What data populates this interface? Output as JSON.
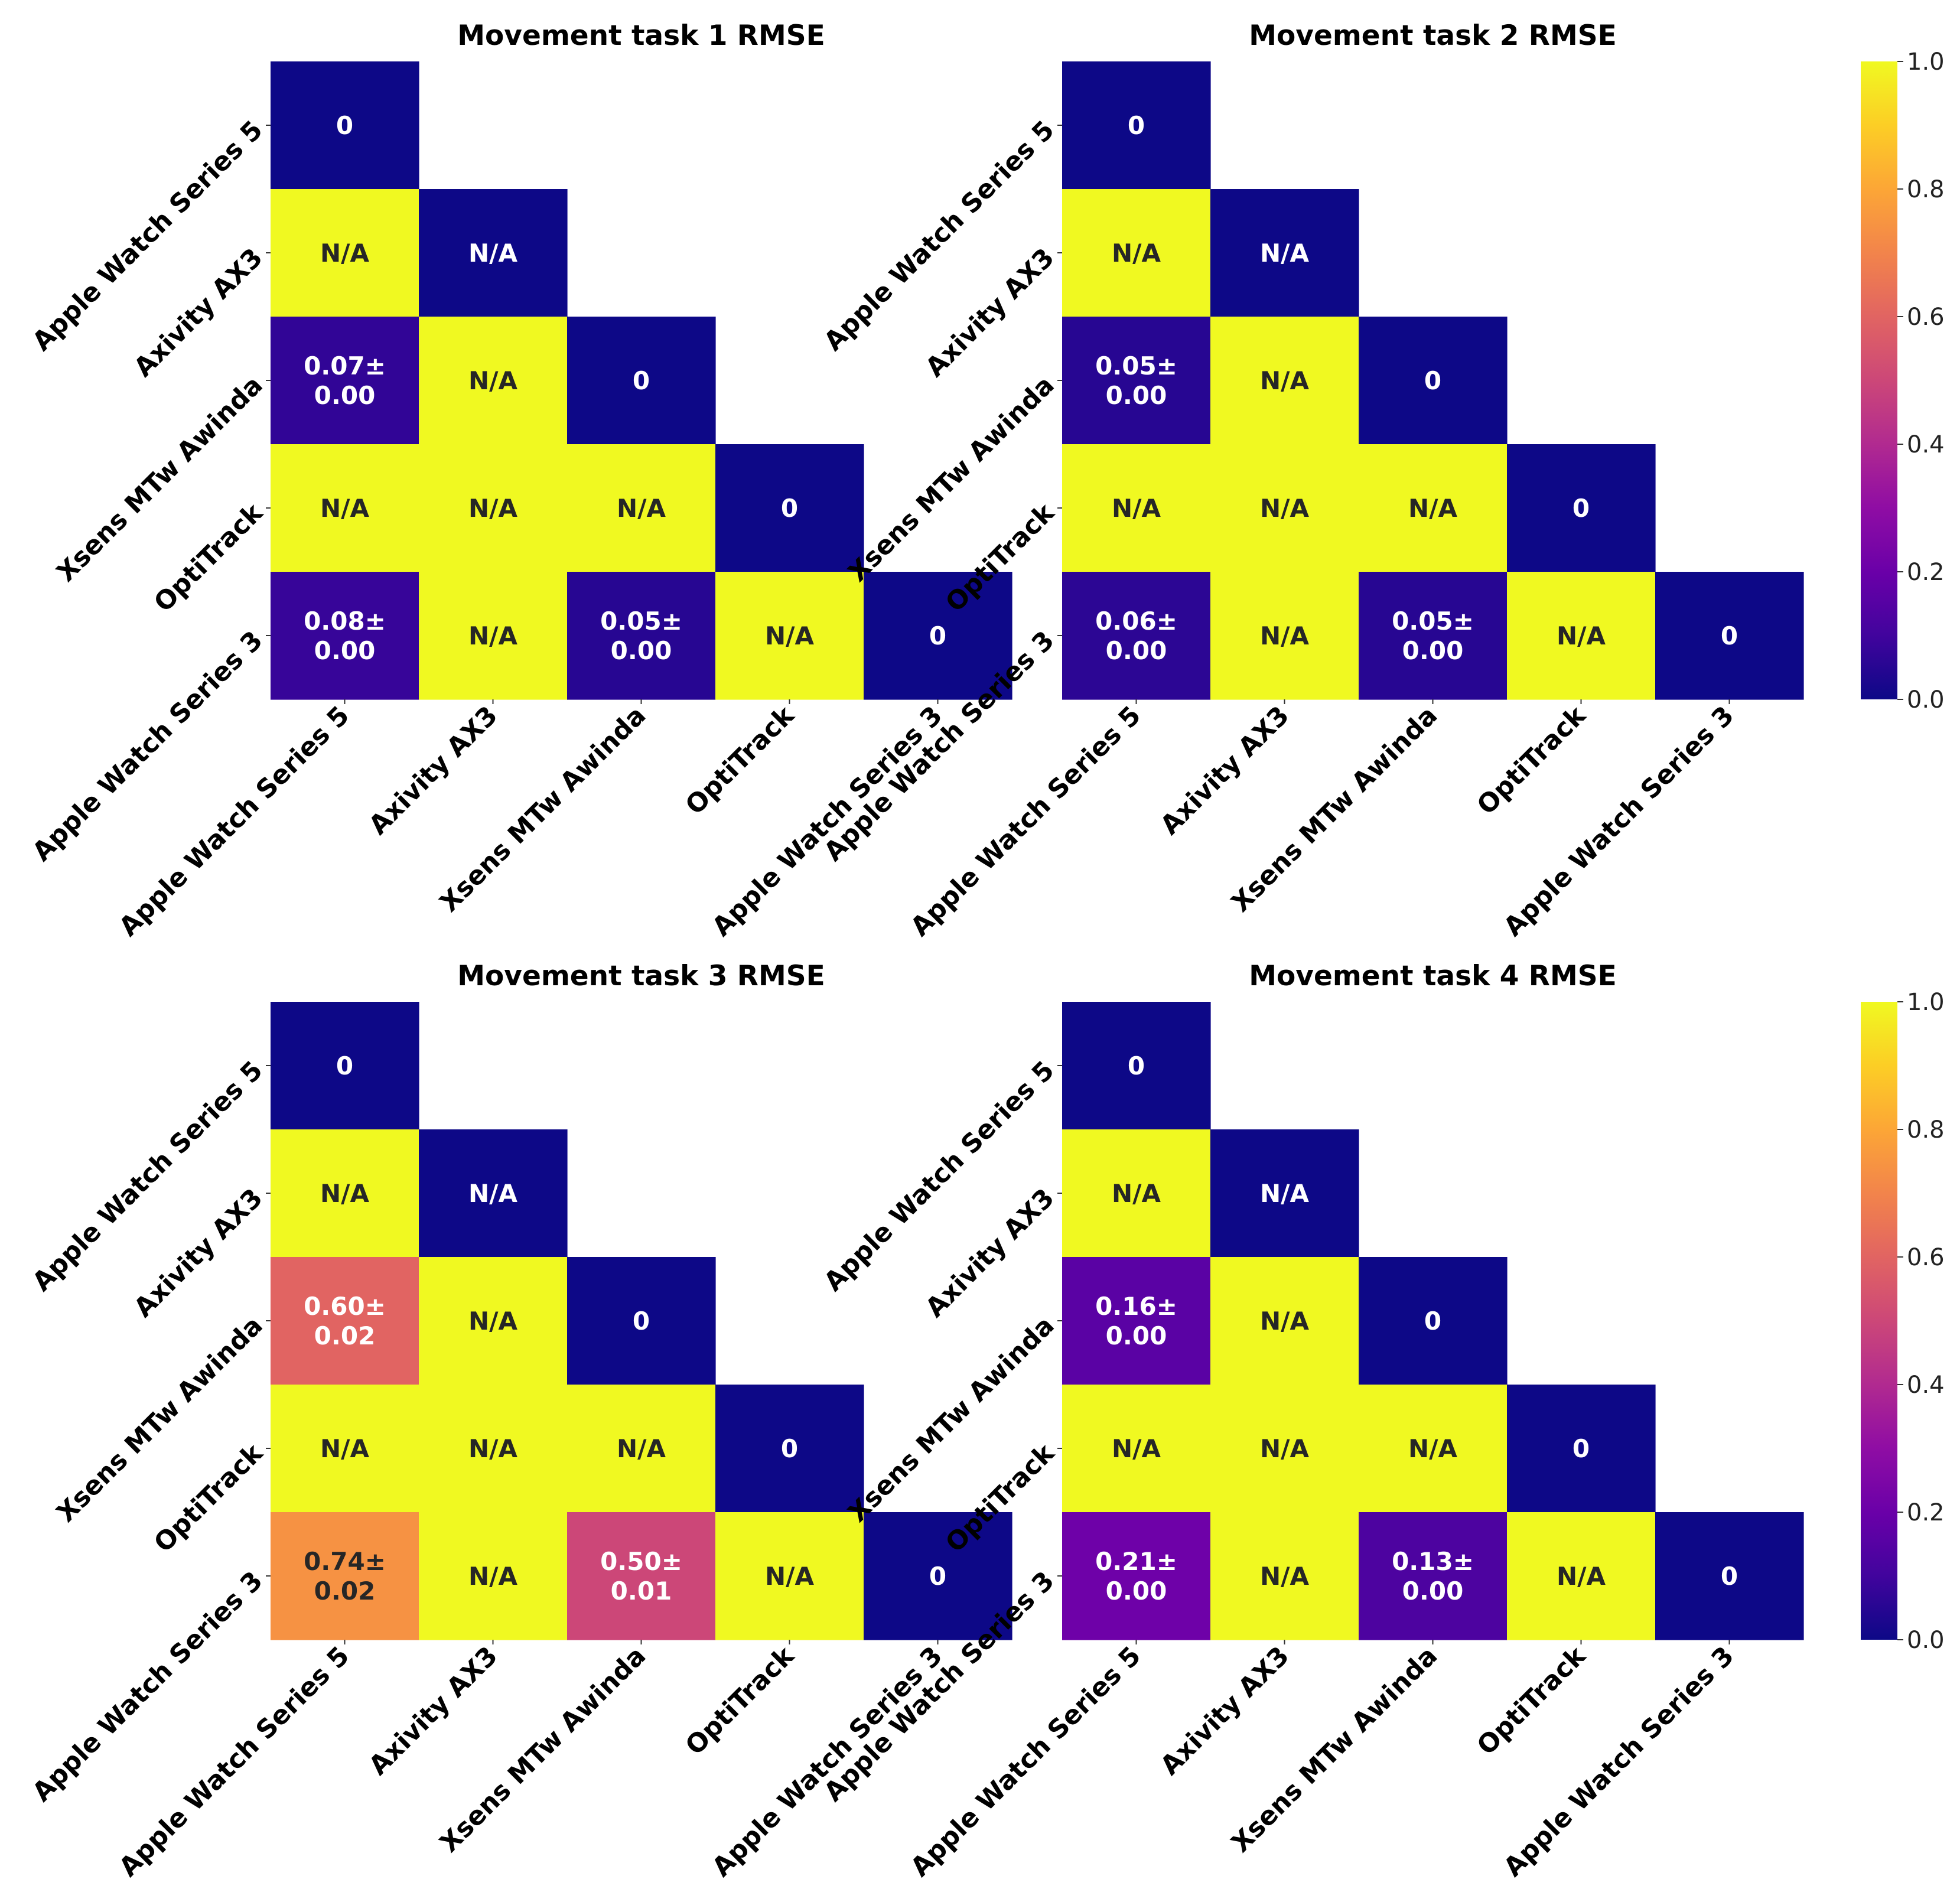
{
  "chart_data": [
    {
      "type": "heatmap",
      "title": "Movement task 1 RMSE",
      "labels": [
        "Apple Watch Series 5",
        "Axivity AX3",
        "Xsens MTw Awinda",
        "OptiTrack",
        "Apple Watch Series 3"
      ],
      "values": [
        [
          0
        ],
        [
          1,
          0
        ],
        [
          0.07,
          1,
          0
        ],
        [
          1,
          1,
          1,
          0
        ],
        [
          0.08,
          1,
          0.05,
          1,
          0
        ]
      ],
      "annotations": [
        [
          "0"
        ],
        [
          "N/A",
          "N/A"
        ],
        [
          "0.07±\n0.00",
          "N/A",
          "0"
        ],
        [
          "N/A",
          "N/A",
          "N/A",
          "0"
        ],
        [
          "0.08±\n0.00",
          "N/A",
          "0.05±\n0.00",
          "N/A",
          "0"
        ]
      ]
    },
    {
      "type": "heatmap",
      "title": "Movement task 2 RMSE",
      "labels": [
        "Apple Watch Series 5",
        "Axivity AX3",
        "Xsens MTw Awinda",
        "OptiTrack",
        "Apple Watch Series 3"
      ],
      "values": [
        [
          0
        ],
        [
          1,
          0
        ],
        [
          0.05,
          1,
          0
        ],
        [
          1,
          1,
          1,
          0
        ],
        [
          0.06,
          1,
          0.05,
          1,
          0
        ]
      ],
      "annotations": [
        [
          "0"
        ],
        [
          "N/A",
          "N/A"
        ],
        [
          "0.05±\n0.00",
          "N/A",
          "0"
        ],
        [
          "N/A",
          "N/A",
          "N/A",
          "0"
        ],
        [
          "0.06±\n0.00",
          "N/A",
          "0.05±\n0.00",
          "N/A",
          "0"
        ]
      ]
    },
    {
      "type": "heatmap",
      "title": "Movement task 3 RMSE",
      "labels": [
        "Apple Watch Series 5",
        "Axivity AX3",
        "Xsens MTw Awinda",
        "OptiTrack",
        "Apple Watch Series 3"
      ],
      "values": [
        [
          0
        ],
        [
          1,
          0
        ],
        [
          0.6,
          1,
          0
        ],
        [
          1,
          1,
          1,
          0
        ],
        [
          0.74,
          1,
          0.5,
          1,
          0
        ]
      ],
      "annotations": [
        [
          "0"
        ],
        [
          "N/A",
          "N/A"
        ],
        [
          "0.60±\n0.02",
          "N/A",
          "0"
        ],
        [
          "N/A",
          "N/A",
          "N/A",
          "0"
        ],
        [
          "0.74±\n0.02",
          "N/A",
          "0.50±\n0.01",
          "N/A",
          "0"
        ]
      ]
    },
    {
      "type": "heatmap",
      "title": "Movement task 4 RMSE",
      "labels": [
        "Apple Watch Series 5",
        "Axivity AX3",
        "Xsens MTw Awinda",
        "OptiTrack",
        "Apple Watch Series 3"
      ],
      "values": [
        [
          0
        ],
        [
          1,
          0
        ],
        [
          0.16,
          1,
          0
        ],
        [
          1,
          1,
          1,
          0
        ],
        [
          0.21,
          1,
          0.13,
          1,
          0
        ]
      ],
      "annotations": [
        [
          "0"
        ],
        [
          "N/A",
          "N/A"
        ],
        [
          "0.16±\n0.00",
          "N/A",
          "0"
        ],
        [
          "N/A",
          "N/A",
          "N/A",
          "0"
        ],
        [
          "0.21±\n0.00",
          "N/A",
          "0.13±\n0.00",
          "N/A",
          "0"
        ]
      ]
    }
  ],
  "colorbar": {
    "colormap": "plasma",
    "range": [
      0.0,
      1.0
    ],
    "ticks": [
      "0.0",
      "0.2",
      "0.4",
      "0.6",
      "0.8",
      "1.0"
    ]
  }
}
